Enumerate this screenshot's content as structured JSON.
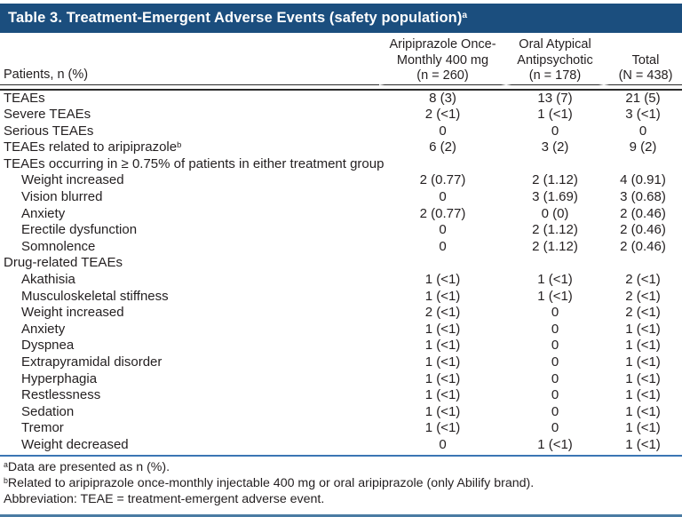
{
  "title": {
    "text": "Table 3. Treatment-Emergent Adverse Events (safety population)",
    "sup": "a"
  },
  "colors": {
    "title_bar": "#1B4E7E",
    "header_rule": "#2A2A2A",
    "footnote_rule": "#3B76B4",
    "bottom_rule": "#4A7BA3",
    "text": "#231F20"
  },
  "table": {
    "stub_header": "Patients, n (%)",
    "columns": [
      {
        "lines": [
          "Aripiprazole Once-",
          "Monthly 400 mg",
          "(n = 260)"
        ]
      },
      {
        "lines": [
          "Oral Atypical",
          "Antipsychotic",
          "(n = 178)"
        ]
      },
      {
        "lines": [
          "Total",
          "(N = 438)"
        ]
      }
    ],
    "rows": [
      {
        "label": "TEAEs",
        "indent": 0,
        "sup": "",
        "values": [
          "8 (3)",
          "13 (7)",
          "21 (5)"
        ]
      },
      {
        "label": "Severe TEAEs",
        "indent": 0,
        "sup": "",
        "values": [
          "2 (<1)",
          "1 (<1)",
          "3 (<1)"
        ]
      },
      {
        "label": "Serious TEAEs",
        "indent": 0,
        "sup": "",
        "values": [
          "0",
          "0",
          "0"
        ]
      },
      {
        "label": "TEAEs related to aripiprazole",
        "indent": 0,
        "sup": "b",
        "values": [
          "6 (2)",
          "3 (2)",
          "9 (2)"
        ]
      },
      {
        "label": "TEAEs occurring in ≥ 0.75% of patients in either treatment group",
        "indent": 0,
        "sup": "",
        "values": [
          "",
          "",
          ""
        ]
      },
      {
        "label": "Weight increased",
        "indent": 1,
        "sup": "",
        "values": [
          "2 (0.77)",
          "2 (1.12)",
          "4 (0.91)"
        ]
      },
      {
        "label": "Vision blurred",
        "indent": 1,
        "sup": "",
        "values": [
          "0",
          "3 (1.69)",
          "3 (0.68)"
        ]
      },
      {
        "label": "Anxiety",
        "indent": 1,
        "sup": "",
        "values": [
          "2 (0.77)",
          "0 (0)",
          "2 (0.46)"
        ]
      },
      {
        "label": "Erectile dysfunction",
        "indent": 1,
        "sup": "",
        "values": [
          "0",
          "2 (1.12)",
          "2 (0.46)"
        ]
      },
      {
        "label": "Somnolence",
        "indent": 1,
        "sup": "",
        "values": [
          "0",
          "2 (1.12)",
          "2 (0.46)"
        ]
      },
      {
        "label": "Drug-related TEAEs",
        "indent": 0,
        "sup": "",
        "values": [
          "",
          "",
          ""
        ]
      },
      {
        "label": "Akathisia",
        "indent": 1,
        "sup": "",
        "values": [
          "1 (<1)",
          "1 (<1)",
          "2 (<1)"
        ]
      },
      {
        "label": "Musculoskeletal stiffness",
        "indent": 1,
        "sup": "",
        "values": [
          "1 (<1)",
          "1 (<1)",
          "2 (<1)"
        ]
      },
      {
        "label": "Weight increased",
        "indent": 1,
        "sup": "",
        "values": [
          "2 (<1)",
          "0",
          "2 (<1)"
        ]
      },
      {
        "label": "Anxiety",
        "indent": 1,
        "sup": "",
        "values": [
          "1 (<1)",
          "0",
          "1 (<1)"
        ]
      },
      {
        "label": "Dyspnea",
        "indent": 1,
        "sup": "",
        "values": [
          "1 (<1)",
          "0",
          "1 (<1)"
        ]
      },
      {
        "label": "Extrapyramidal disorder",
        "indent": 1,
        "sup": "",
        "values": [
          "1 (<1)",
          "0",
          "1 (<1)"
        ]
      },
      {
        "label": "Hyperphagia",
        "indent": 1,
        "sup": "",
        "values": [
          "1 (<1)",
          "0",
          "1 (<1)"
        ]
      },
      {
        "label": "Restlessness",
        "indent": 1,
        "sup": "",
        "values": [
          "1 (<1)",
          "0",
          "1 (<1)"
        ]
      },
      {
        "label": "Sedation",
        "indent": 1,
        "sup": "",
        "values": [
          "1 (<1)",
          "0",
          "1 (<1)"
        ]
      },
      {
        "label": "Tremor",
        "indent": 1,
        "sup": "",
        "values": [
          "1 (<1)",
          "0",
          "1 (<1)"
        ]
      },
      {
        "label": "Weight decreased",
        "indent": 1,
        "sup": "",
        "values": [
          "0",
          "1 (<1)",
          "1 (<1)"
        ]
      }
    ]
  },
  "footnotes": [
    {
      "sup": "a",
      "text": "Data are presented as n (%)."
    },
    {
      "sup": "b",
      "text": "Related to aripiprazole once-monthly injectable 400 mg or oral aripiprazole (only Abilify brand)."
    },
    {
      "sup": "",
      "text": "Abbreviation: TEAE = treatment-emergent adverse event."
    }
  ]
}
